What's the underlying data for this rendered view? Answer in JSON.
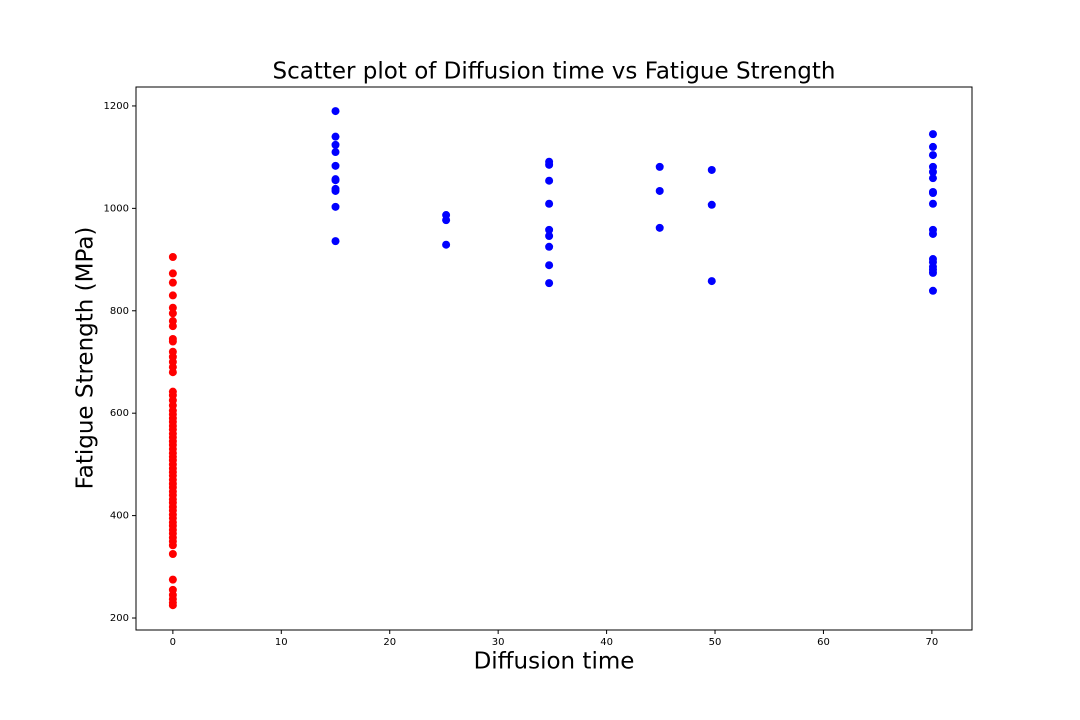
{
  "chart_data": {
    "type": "scatter",
    "title": "Scatter plot of Diffusion time vs Fatigue Strength",
    "x_label": "Diffusion time",
    "y_label": "Fatigue Strength (MPa)",
    "xlim": [
      -3.4,
      73.7
    ],
    "ylim": [
      176.6,
      1237
    ],
    "xticks": [
      0,
      10,
      20,
      30,
      40,
      50,
      60,
      70
    ],
    "yticks": [
      200,
      400,
      600,
      800,
      1000,
      1200
    ],
    "series": [
      {
        "color": "#ff0000",
        "x": [
          0,
          0,
          0,
          0,
          0,
          0,
          0,
          0,
          0,
          0,
          0,
          0,
          0,
          0,
          0,
          0,
          0,
          0,
          0,
          0,
          0,
          0,
          0,
          0,
          0,
          0,
          0,
          0,
          0,
          0,
          0,
          0,
          0,
          0,
          0,
          0,
          0,
          0,
          0,
          0,
          0,
          0,
          0,
          0,
          0,
          0,
          0,
          0,
          0,
          0,
          0,
          0,
          0,
          0,
          0,
          0,
          0,
          0,
          0,
          0,
          0,
          0
        ],
        "values": [
          905,
          873,
          855,
          830,
          806,
          795,
          780,
          770,
          745,
          740,
          720,
          710,
          700,
          690,
          680,
          642,
          635,
          625,
          615,
          605,
          598,
          590,
          583,
          575,
          568,
          560,
          553,
          545,
          538,
          530,
          522,
          515,
          508,
          500,
          492,
          485,
          478,
          470,
          462,
          455,
          447,
          440,
          432,
          425,
          417,
          410,
          402,
          395,
          387,
          380,
          372,
          365,
          357,
          350,
          342,
          325,
          275,
          255,
          245,
          237,
          230,
          225
        ]
      },
      {
        "color": "#0000ff",
        "x": [
          15,
          15,
          15,
          15,
          15,
          15,
          15,
          15,
          15,
          15,
          15,
          25.2,
          25.2,
          25.2,
          34.7,
          34.7,
          34.7,
          34.7,
          34.7,
          34.7,
          34.7,
          34.7,
          34.7,
          44.9,
          44.9,
          44.9,
          49.7,
          49.7,
          49.7,
          70.1,
          70.1,
          70.1,
          70.1,
          70.1,
          70.1,
          70.1,
          70.1,
          70.1,
          70.1,
          70.1,
          70.1,
          70.1,
          70.1,
          70.1,
          70.1,
          70.1
        ],
        "values": [
          1190,
          1140,
          1124,
          1110,
          1083,
          1057,
          1055,
          1038,
          1034,
          1003,
          936,
          987,
          977,
          929,
          1091,
          1085,
          1054,
          1009,
          958,
          946,
          925,
          889,
          854,
          1081,
          1034,
          962,
          1075,
          1007,
          858,
          1145,
          1120,
          1104,
          1081,
          1071,
          1059,
          1032,
          1030,
          1009,
          958,
          950,
          901,
          895,
          886,
          880,
          874,
          839
        ]
      }
    ]
  }
}
